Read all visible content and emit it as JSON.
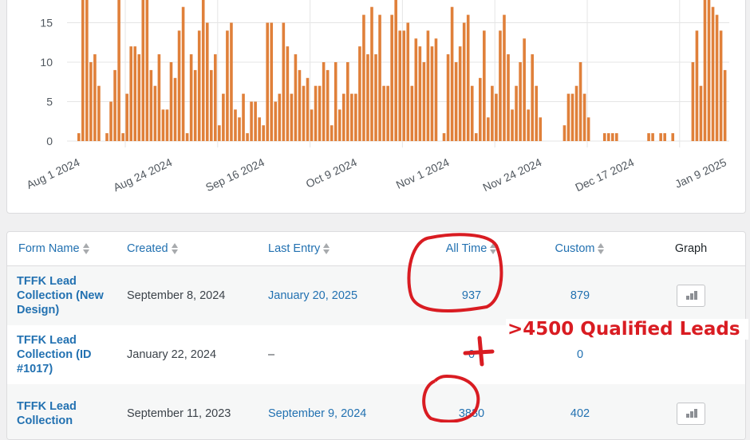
{
  "chart_data": {
    "type": "bar",
    "title": "",
    "xlabel": "",
    "ylabel": "",
    "start_date": "Aug 1 2024",
    "ylim": [
      0,
      18
    ],
    "yticks": [
      "0",
      "5",
      "10",
      "15"
    ],
    "ytick_values": [
      0,
      5,
      10,
      15
    ],
    "xtick_labels": [
      "Aug 1 2024",
      "Aug 24 2024",
      "Sep 16 2024",
      "Oct 9 2024",
      "Nov 1 2024",
      "Nov 24 2024",
      "Dec 17 2024",
      "Jan 9 2025"
    ],
    "bar_color": "#e0803a",
    "grid": true,
    "values": [
      1,
      20,
      20,
      10,
      11,
      7,
      0,
      1,
      5,
      9,
      20,
      1,
      6,
      12,
      12,
      11,
      20,
      20,
      9,
      7,
      11,
      4,
      4,
      10,
      8,
      14,
      17,
      1,
      11,
      9,
      14,
      20,
      15,
      9,
      11,
      2,
      6,
      14,
      15,
      4,
      3,
      6,
      1,
      5,
      5,
      3,
      2,
      15,
      15,
      5,
      6,
      15,
      12,
      6,
      11,
      9,
      7,
      8,
      4,
      7,
      7,
      10,
      9,
      2,
      10,
      4,
      6,
      10,
      6,
      6,
      12,
      16,
      11,
      17,
      11,
      16,
      7,
      7,
      16,
      20,
      14,
      14,
      15,
      7,
      13,
      12,
      10,
      14,
      12,
      13,
      0,
      1,
      11,
      17,
      10,
      12,
      15,
      16,
      7,
      1,
      8,
      14,
      3,
      7,
      6,
      14,
      16,
      11,
      4,
      7,
      10,
      13,
      4,
      11,
      7,
      3,
      0,
      0,
      0,
      0,
      0,
      2,
      6,
      6,
      7,
      10,
      6,
      3,
      0,
      0,
      0,
      1,
      1,
      1,
      1,
      0,
      0,
      0,
      0,
      0,
      0,
      0,
      1,
      1,
      0,
      1,
      1,
      0,
      1,
      0,
      0,
      0,
      0,
      10,
      14,
      7,
      20,
      20,
      17,
      16,
      14,
      9
    ]
  },
  "table": {
    "headers": {
      "form_name": "Form Name",
      "created": "Created",
      "last_entry": "Last Entry",
      "all_time": "All Time",
      "custom": "Custom",
      "graph": "Graph"
    },
    "rows": [
      {
        "name": "TFFK Lead Collection (New Design)",
        "created": "September 8, 2024",
        "last_entry": "January 20, 2025",
        "all_time": "937",
        "custom": "879",
        "graph": "bar-chart-icon"
      },
      {
        "name": "TFFK Lead Collection (ID #1017)",
        "created": "January 22, 2024",
        "last_entry": "–",
        "all_time": "0",
        "custom": "0",
        "graph": ""
      },
      {
        "name": "TFFK Lead Collection",
        "created": "September 11, 2023",
        "last_entry": "September 9, 2024",
        "all_time": "3830",
        "custom": "402",
        "graph": "bar-chart-icon"
      }
    ]
  },
  "annotation": {
    "text": ">4500 Qualified Leads",
    "color": "#d91c22"
  }
}
